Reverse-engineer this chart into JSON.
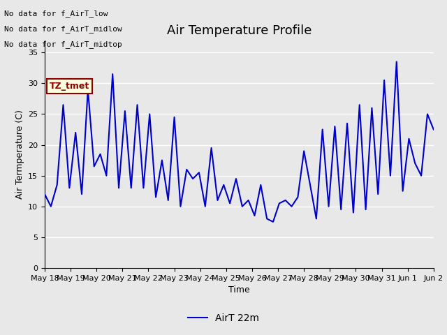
{
  "title": "Air Temperature Profile",
  "xlabel": "Time",
  "ylabel": "Air Termperature (C)",
  "ylim": [
    0,
    37
  ],
  "yticks": [
    0,
    5,
    10,
    15,
    20,
    25,
    30,
    35
  ],
  "legend_label": "AirT 22m",
  "line_color": "#0000CC",
  "line_width": 1.5,
  "bg_color": "#e8e8e8",
  "fig_bg_color": "#e8e8e8",
  "no_data_texts": [
    "No data for f_AirT_low",
    "No data for f_AirT_midlow",
    "No data for f_AirT_midtop"
  ],
  "tz_label": "TZ_tmet",
  "xtick_labels": [
    "May 18",
    "May 19",
    "May 20",
    "May 21",
    "May 22",
    "May 23",
    "May 24",
    "May 25",
    "May 26",
    "May 27",
    "May 28",
    "May 29",
    "May 30",
    "May 31",
    "Jun 1",
    "Jun 2"
  ],
  "values": [
    12.0,
    10.0,
    13.5,
    26.5,
    13.0,
    22.0,
    12.0,
    29.0,
    16.5,
    18.5,
    15.0,
    31.5,
    13.0,
    25.5,
    13.0,
    26.5,
    13.0,
    25.0,
    11.5,
    17.5,
    11.0,
    24.5,
    10.0,
    16.0,
    14.5,
    15.5,
    10.0,
    19.5,
    11.0,
    13.5,
    10.5,
    14.5,
    10.0,
    11.0,
    8.5,
    13.5,
    8.0,
    7.5,
    10.5,
    11.0,
    10.0,
    11.5,
    19.0,
    13.5,
    8.0,
    22.5,
    10.0,
    23.0,
    9.5,
    23.5,
    9.0,
    26.5,
    9.5,
    26.0,
    12.0,
    30.5,
    15.0,
    33.5,
    12.5,
    21.0,
    17.0,
    15.0,
    25.0,
    22.5
  ],
  "grid_color": "#ffffff",
  "title_fontsize": 13,
  "tick_fontsize": 8,
  "label_fontsize": 9,
  "legend_fontsize": 10
}
